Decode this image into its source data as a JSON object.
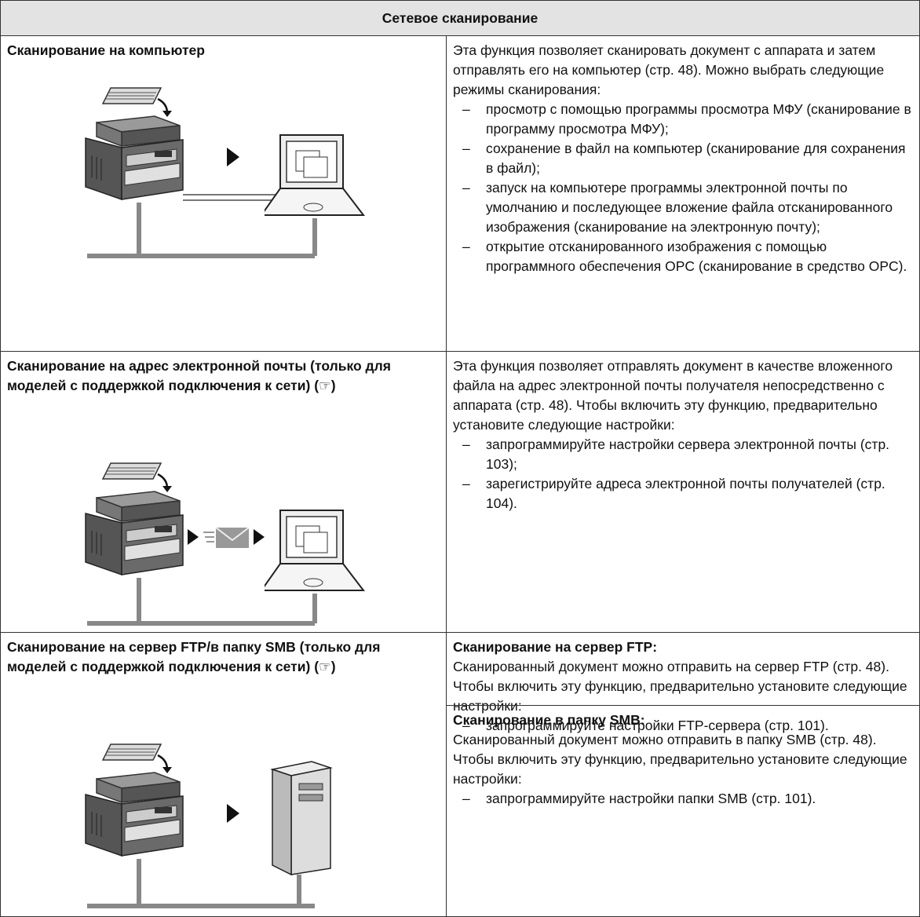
{
  "table": {
    "header": "Сетевое сканирование",
    "bullet": "–",
    "rows": [
      {
        "title": "Сканирование на компьютер",
        "text": "Эта функция позволяет сканировать документ с аппарата и затем отправлять его на компьютер (стр. 48). Можно выбрать следующие режимы сканирования:",
        "items": [
          "просмотр с помощью программы просмотра МФУ (сканирование в программу просмотра МФУ);",
          "сохранение в файл на компьютер (сканирование для сохранения в файл);",
          "запуск на компьютере программы электронной почты по умолчанию и последующее вложение файла отсканированного изображения (сканирование на электронную почту);",
          "открытие отсканированного изображения с помощью программного обеспечения OPC (сканирование в средство OPC)."
        ]
      },
      {
        "title": "Сканирование на адрес электронной почты (только для моделей с поддержкой подключения к сети) (☞)",
        "text": "Эта функция позволяет отправлять документ в качестве вложенного файла на адрес электронной почты получателя непосредственно с аппарата (стр. 48). Чтобы включить эту функцию, предварительно установите следующие настройки:",
        "items": [
          "запрограммируйте настройки сервера электронной почты (стр. 103);",
          "зарегистрируйте адреса электронной почты получателей (стр. 104)."
        ]
      },
      {
        "title": "Сканирование на сервер FTP/в папку SMB (только для моделей с поддержкой подключения к сети) (☞)",
        "sections": [
          {
            "heading": "Сканирование на сервер FTP:",
            "text": "Сканированный документ можно отправить на сервер FTP (стр. 48). Чтобы включить эту функцию, предварительно установите следующие настройки:",
            "items": [
              "запрограммируйте настройки FTP-сервера (стр. 101)."
            ]
          },
          {
            "heading": "Сканирование в папку SMB:",
            "text": "Сканированный документ можно отправить в папку SMB (стр. 48). Чтобы включить эту функцию, предварительно установите следующие настройки:",
            "items": [
              "запрограммируйте настройки папки SMB (стр. 101)."
            ]
          }
        ]
      }
    ]
  }
}
